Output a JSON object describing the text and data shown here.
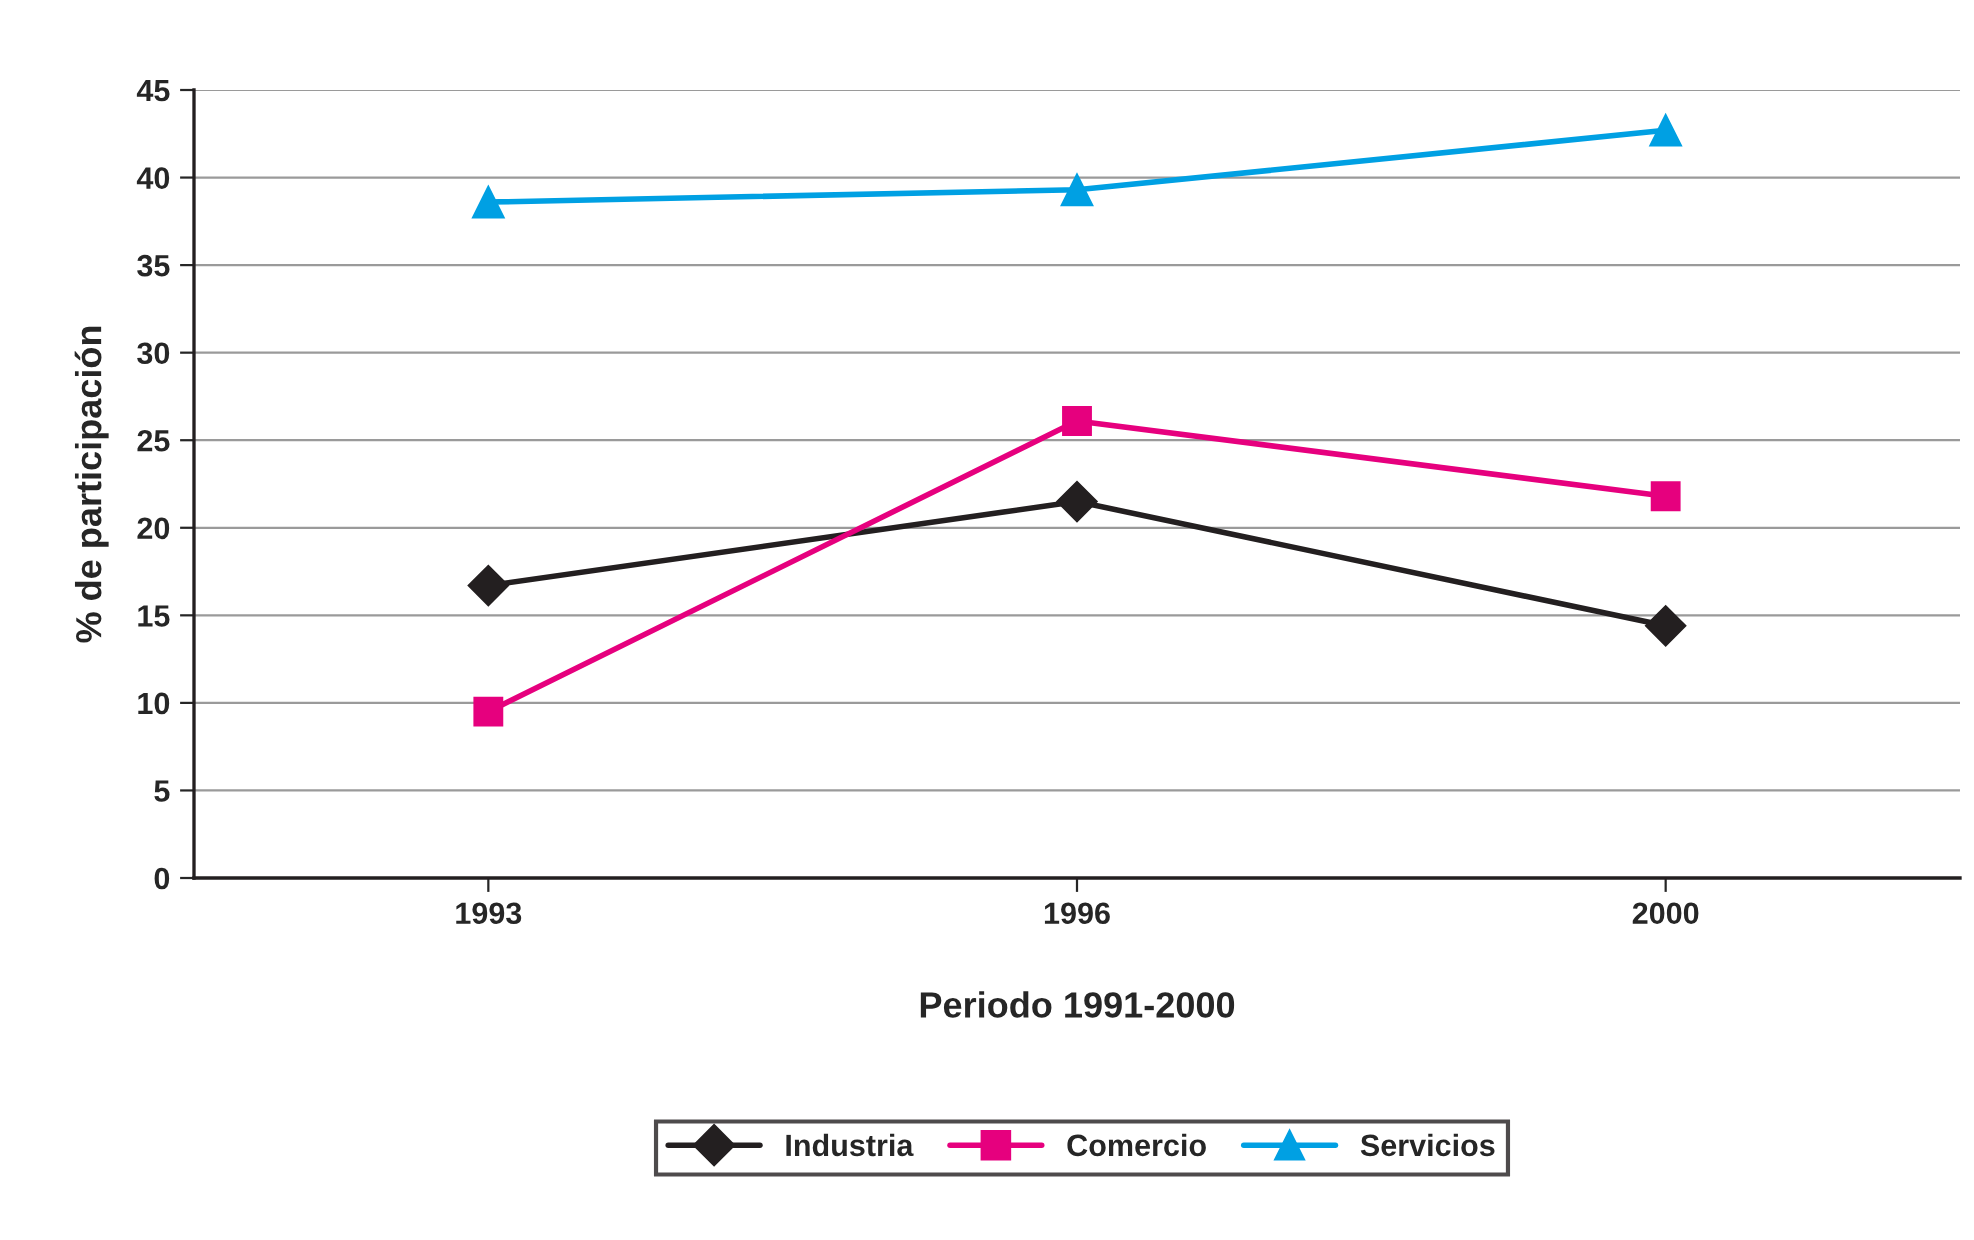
{
  "chart_data": {
    "type": "line",
    "xlabel": "Periodo 1991-2000",
    "ylabel": "% de participación",
    "categories": [
      "1993",
      "1996",
      "2000"
    ],
    "series": [
      {
        "name": "Industria",
        "color": "#231f20",
        "marker": "diamond",
        "values": [
          16.7,
          21.5,
          14.4
        ]
      },
      {
        "name": "Comercio",
        "color": "#e6007e",
        "marker": "square",
        "values": [
          9.5,
          26.1,
          21.8
        ]
      },
      {
        "name": "Servicios",
        "color": "#00a0e3",
        "marker": "triangle",
        "values": [
          38.6,
          39.3,
          42.7
        ]
      }
    ],
    "ylim": [
      0,
      45
    ],
    "yticks": [
      0,
      5,
      10,
      15,
      20,
      25,
      30,
      35,
      40,
      45
    ],
    "grid": "y",
    "legend": "bottom",
    "line_style": "solid"
  }
}
